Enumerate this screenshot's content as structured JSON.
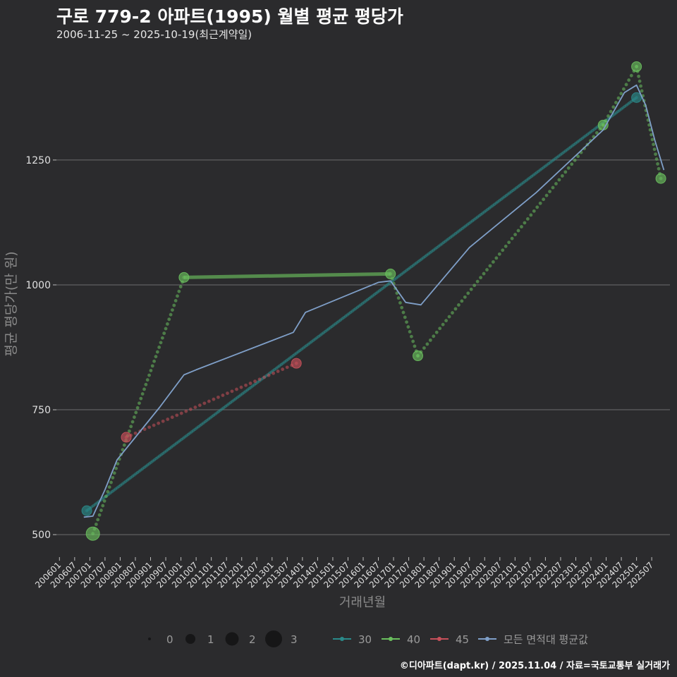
{
  "header": {
    "title": "구로 779-2 아파트(1995) 월별 평균 평당가",
    "subtitle": "2006-11-25 ~ 2025-10-19(최근계약일)"
  },
  "caption": "©디아파트(dapt.kr) / 2025.11.04 / 자료=국토교통부 실거래가",
  "chart_data": {
    "type": "line",
    "title": "구로 779-2 아파트(1995) 월별 평균 평당가",
    "xlabel": "거래년월",
    "ylabel": "평균 평당가(만 원)",
    "ylim": [
      455,
      1480
    ],
    "yticks": [
      500,
      750,
      1000,
      1250
    ],
    "ytick_labels": [
      "500",
      "750",
      "1000",
      "1250"
    ],
    "xlim": [
      2005.9,
      2026.1
    ],
    "xtick_labels": [
      "200601",
      "200607",
      "200701",
      "200707",
      "200801",
      "200807",
      "200901",
      "200907",
      "201001",
      "201007",
      "201101",
      "201107",
      "201201",
      "201207",
      "201301",
      "201307",
      "201401",
      "201407",
      "201501",
      "201507",
      "201601",
      "201607",
      "201701",
      "201707",
      "201801",
      "201807",
      "201901",
      "201907",
      "202001",
      "202007",
      "202101",
      "202107",
      "202201",
      "202207",
      "202301",
      "202307",
      "202401",
      "202407",
      "202501",
      "202507"
    ],
    "size_legend": {
      "values": [
        "0",
        "1",
        "2",
        "3"
      ]
    },
    "color_legend": [
      {
        "name": "30",
        "color": "#2a8a8a"
      },
      {
        "name": "40",
        "color": "#6abf5e"
      },
      {
        "name": "45",
        "color": "#c8505a"
      },
      {
        "name": "모든 면적대 평균값",
        "color": "#7f9fc8"
      }
    ],
    "series": [
      {
        "name": "30",
        "color": "#2a8a8a",
        "points": [
          {
            "x": 2006.9,
            "y": 548,
            "size": 1
          },
          {
            "x": 2025.0,
            "y": 1375,
            "size": 1
          }
        ]
      },
      {
        "name": "40",
        "color": "#6abf5e",
        "points": [
          {
            "x": 2007.1,
            "y": 502,
            "size": 2
          },
          {
            "x": 2010.1,
            "y": 1015,
            "size": 1
          },
          {
            "x": 2016.9,
            "y": 1022,
            "size": 1
          },
          {
            "x": 2017.8,
            "y": 858,
            "size": 1
          },
          {
            "x": 2023.9,
            "y": 1320,
            "size": 1
          },
          {
            "x": 2025.0,
            "y": 1437,
            "size": 1
          },
          {
            "x": 2025.8,
            "y": 1213,
            "size": 1
          }
        ]
      },
      {
        "name": "45",
        "color": "#c8505a",
        "points": [
          {
            "x": 2008.2,
            "y": 695,
            "size": 1
          },
          {
            "x": 2013.8,
            "y": 843,
            "size": 1
          }
        ]
      },
      {
        "name": "모든 면적대 평균값",
        "color": "#7f9fc8",
        "points": [
          {
            "x": 2006.8,
            "y": 535
          },
          {
            "x": 2007.1,
            "y": 537
          },
          {
            "x": 2007.5,
            "y": 590
          },
          {
            "x": 2007.9,
            "y": 650
          },
          {
            "x": 2008.5,
            "y": 695
          },
          {
            "x": 2009.3,
            "y": 755
          },
          {
            "x": 2010.1,
            "y": 820
          },
          {
            "x": 2010.5,
            "y": 830
          },
          {
            "x": 2013.7,
            "y": 905
          },
          {
            "x": 2014.1,
            "y": 945
          },
          {
            "x": 2016.5,
            "y": 1005
          },
          {
            "x": 2016.9,
            "y": 1008
          },
          {
            "x": 2017.4,
            "y": 965
          },
          {
            "x": 2017.9,
            "y": 960
          },
          {
            "x": 2019.5,
            "y": 1075
          },
          {
            "x": 2021.7,
            "y": 1185
          },
          {
            "x": 2023.9,
            "y": 1310
          },
          {
            "x": 2024.6,
            "y": 1385
          },
          {
            "x": 2025.0,
            "y": 1400
          },
          {
            "x": 2025.3,
            "y": 1360
          },
          {
            "x": 2025.6,
            "y": 1290
          },
          {
            "x": 2025.9,
            "y": 1230
          }
        ]
      }
    ]
  }
}
